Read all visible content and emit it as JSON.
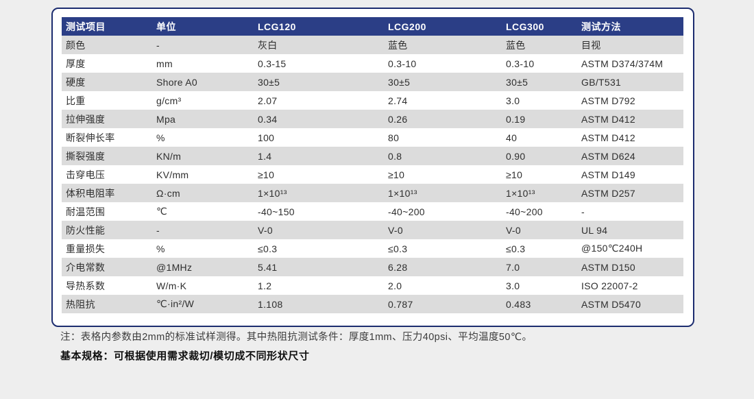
{
  "colors": {
    "page_bg": "#eeeeee",
    "card_bg": "#ffffff",
    "card_border": "#1c2c6f",
    "header_bg": "#2b3e86",
    "header_text": "#ffffff",
    "stripe_row": "#dcdcdc",
    "body_text": "#2e2e2e"
  },
  "table": {
    "columns": [
      "测试项目",
      "单位",
      "LCG120",
      "LCG200",
      "LCG300",
      "测试方法"
    ],
    "rows": [
      [
        "颜色",
        "-",
        "灰白",
        "蓝色",
        "蓝色",
        "目视"
      ],
      [
        "厚度",
        "mm",
        "0.3-15",
        "0.3-10",
        "0.3-10",
        "ASTM D374/374M"
      ],
      [
        "硬度",
        "Shore A0",
        "30±5",
        "30±5",
        "30±5",
        "GB/T531"
      ],
      [
        "比重",
        "g/cm³",
        "2.07",
        "2.74",
        "3.0",
        "ASTM D792"
      ],
      [
        "拉伸强度",
        "Mpa",
        "0.34",
        "0.26",
        "0.19",
        "ASTM D412"
      ],
      [
        "断裂伸长率",
        "%",
        "100",
        "80",
        "40",
        "ASTM D412"
      ],
      [
        "撕裂强度",
        "KN/m",
        "1.4",
        "0.8",
        "0.90",
        "ASTM D624"
      ],
      [
        "击穿电压",
        "KV/mm",
        "≥10",
        "≥10",
        "≥10",
        "ASTM D149"
      ],
      [
        "体积电阻率",
        "Ω·cm",
        "1×10¹³",
        "1×10¹³",
        "1×10¹³",
        "ASTM D257"
      ],
      [
        "耐温范围",
        "℃",
        "-40~150",
        "-40~200",
        "-40~200",
        "-"
      ],
      [
        "防火性能",
        "-",
        "V-0",
        "V-0",
        "V-0",
        "UL 94"
      ],
      [
        "重量损失",
        "%",
        "≤0.3",
        "≤0.3",
        "≤0.3",
        "@150℃240H"
      ],
      [
        "介电常数",
        "@1MHz",
        "5.41",
        "6.28",
        "7.0",
        "ASTM D150"
      ],
      [
        "导热系数",
        "W/m·K",
        "1.2",
        "2.0",
        "3.0",
        "ISO 22007-2"
      ],
      [
        "热阻抗",
        "℃·in²/W",
        "1.108",
        "0.787",
        "0.483",
        "ASTM D5470"
      ]
    ],
    "column_keys": [
      "item",
      "unit",
      "lcg120",
      "lcg200",
      "lcg300",
      "method"
    ]
  },
  "notes": {
    "line1": "注：表格内参数由2mm的标准试样测得。其中热阻抗测试条件：厚度1mm、压力40psi、平均温度50℃。",
    "line2": "基本规格：可根据使用需求裁切/模切成不同形状尺寸"
  }
}
